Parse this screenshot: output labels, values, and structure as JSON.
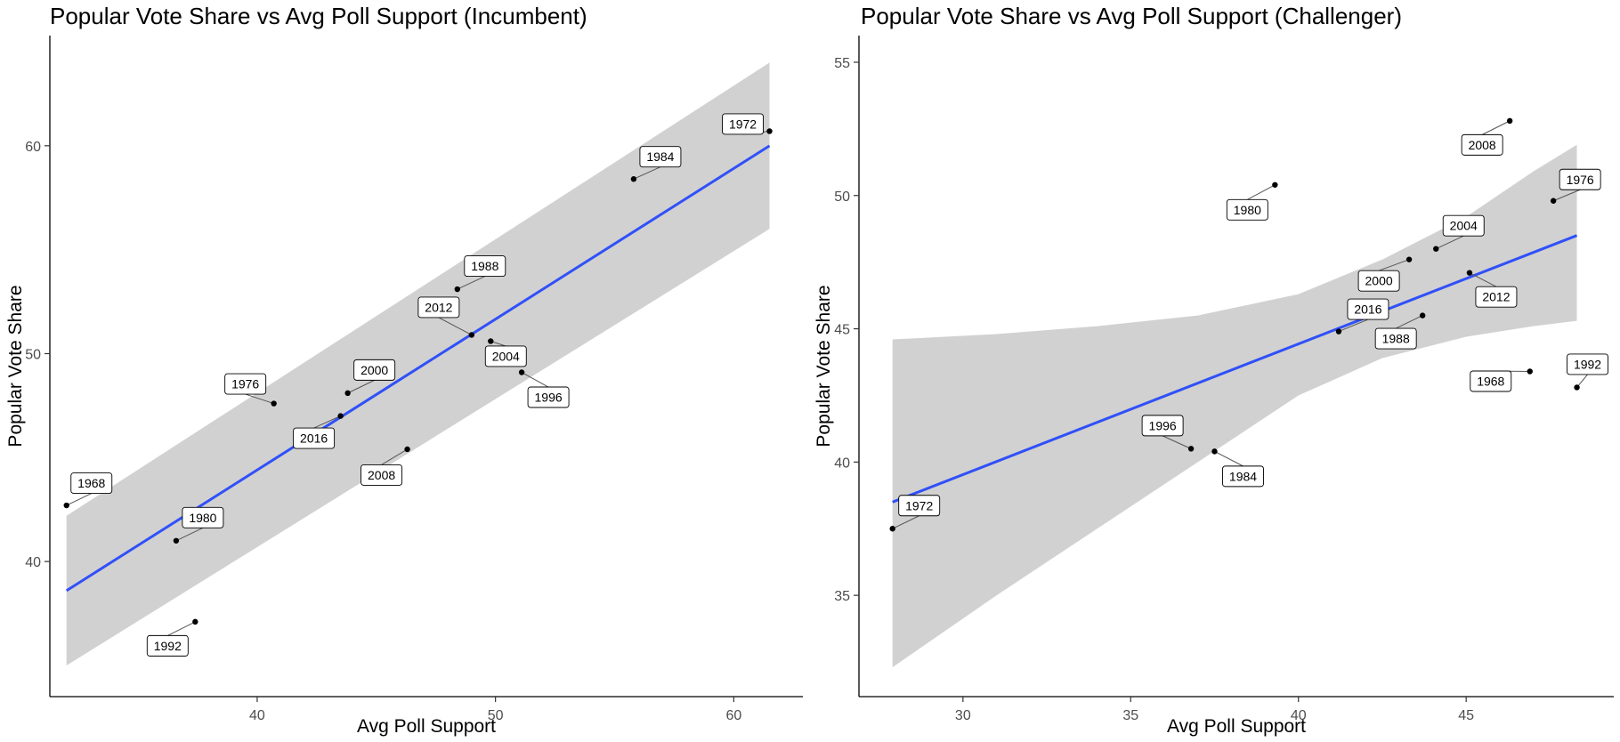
{
  "chart_data": [
    {
      "type": "scatter",
      "title": "Popular Vote Share vs Avg Poll Support (Incumbent)",
      "xlabel": "Avg Poll Support",
      "ylabel": "Popular Vote Share",
      "xlim": [
        31.3,
        62.9
      ],
      "ylim": [
        33.5,
        65.3
      ],
      "xticks": [
        40,
        50,
        60
      ],
      "yticks": [
        40,
        50,
        60
      ],
      "grid": false,
      "points": [
        {
          "label": "1968",
          "x": 32.0,
          "y": 42.7
        },
        {
          "label": "1972",
          "x": 61.5,
          "y": 60.7
        },
        {
          "label": "1976",
          "x": 40.7,
          "y": 47.6
        },
        {
          "label": "1980",
          "x": 36.6,
          "y": 41.0
        },
        {
          "label": "1984",
          "x": 55.8,
          "y": 58.4
        },
        {
          "label": "1988",
          "x": 48.4,
          "y": 53.1
        },
        {
          "label": "1992",
          "x": 37.4,
          "y": 37.1
        },
        {
          "label": "1996",
          "x": 51.1,
          "y": 49.1
        },
        {
          "label": "2000",
          "x": 43.8,
          "y": 48.1
        },
        {
          "label": "2004",
          "x": 49.8,
          "y": 50.6
        },
        {
          "label": "2008",
          "x": 46.3,
          "y": 45.4
        },
        {
          "label": "2012",
          "x": 49.0,
          "y": 50.9
        },
        {
          "label": "2016",
          "x": 43.5,
          "y": 47.0
        }
      ],
      "fit": {
        "x": [
          32.0,
          61.5
        ],
        "y": [
          38.6,
          60.0
        ]
      },
      "band": {
        "x": [
          32.0,
          61.5
        ],
        "lower": [
          35.0,
          56.0
        ],
        "upper": [
          42.2,
          64.0
        ]
      }
    },
    {
      "type": "scatter",
      "title": "Popular Vote Share vs Avg Poll Support (Challenger)",
      "xlabel": "Avg Poll Support",
      "ylabel": "Popular Vote Share",
      "xlim": [
        26.9,
        49.4
      ],
      "ylim": [
        31.2,
        56.0
      ],
      "xticks": [
        30,
        35,
        40,
        45
      ],
      "yticks": [
        35,
        40,
        45,
        50,
        55
      ],
      "grid": false,
      "points": [
        {
          "label": "1968",
          "x": 46.9,
          "y": 43.4
        },
        {
          "label": "1972",
          "x": 27.9,
          "y": 37.5
        },
        {
          "label": "1976",
          "x": 47.6,
          "y": 49.8
        },
        {
          "label": "1980",
          "x": 39.3,
          "y": 50.4
        },
        {
          "label": "1984",
          "x": 37.5,
          "y": 40.4
        },
        {
          "label": "1988",
          "x": 43.7,
          "y": 45.5
        },
        {
          "label": "1992",
          "x": 48.3,
          "y": 42.8
        },
        {
          "label": "1996",
          "x": 36.8,
          "y": 40.5
        },
        {
          "label": "2000",
          "x": 43.3,
          "y": 47.6
        },
        {
          "label": "2004",
          "x": 44.1,
          "y": 48.0
        },
        {
          "label": "2008",
          "x": 46.3,
          "y": 52.8
        },
        {
          "label": "2012",
          "x": 45.1,
          "y": 47.1
        },
        {
          "label": "2016",
          "x": 41.2,
          "y": 44.9
        }
      ],
      "fit": {
        "x": [
          27.9,
          48.3
        ],
        "y": [
          38.5,
          48.5
        ]
      },
      "band": {
        "x": [
          27.9,
          31.0,
          34.0,
          37.0,
          40.0,
          42.5,
          45.0,
          47.0,
          48.3
        ],
        "lower": [
          32.3,
          35.0,
          37.5,
          40.0,
          42.5,
          43.9,
          44.7,
          45.1,
          45.3
        ],
        "upper": [
          44.6,
          44.8,
          45.1,
          45.5,
          46.3,
          47.6,
          49.2,
          50.9,
          51.9
        ]
      }
    }
  ]
}
